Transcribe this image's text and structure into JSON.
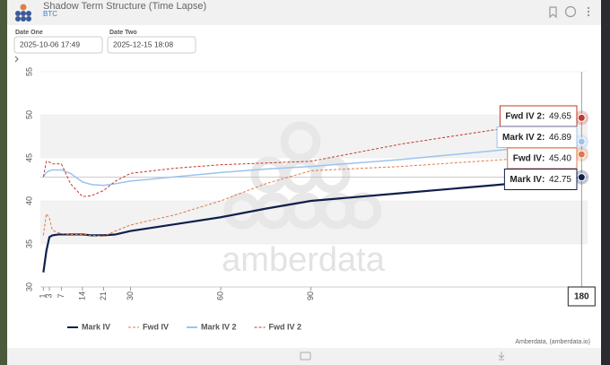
{
  "header": {
    "title": "Shadow Term Structure (Time Lapse)",
    "subtitle": "BTC"
  },
  "controls": {
    "date_one_label": "Date One",
    "date_one": "2025-10-06 17:49",
    "date_two_label": "Date Two",
    "date_two": "2025-12-15 18:08"
  },
  "chart_data": {
    "type": "line",
    "x": [
      1,
      2,
      3,
      4,
      6,
      7,
      10,
      14,
      17,
      21,
      25,
      30,
      45,
      60,
      75,
      90,
      120,
      150,
      180
    ],
    "series": [
      {
        "name": "Mark IV",
        "color": "#0f1f4b",
        "style": "solid",
        "values": [
          31.7,
          34.2,
          35.8,
          36.0,
          36.1,
          36.1,
          36.1,
          36.1,
          36.0,
          36.0,
          36.1,
          36.5,
          37.3,
          38.1,
          39.1,
          40.0,
          40.9,
          41.8,
          42.75
        ]
      },
      {
        "name": "Fwd IV",
        "color": "#e0784a",
        "style": "dashed",
        "values": [
          36.0,
          38.5,
          38.0,
          36.6,
          36.3,
          36.2,
          36.1,
          36.1,
          36.0,
          35.9,
          36.5,
          37.2,
          38.4,
          40.0,
          42.0,
          43.5,
          44.0,
          44.7,
          45.4
        ]
      },
      {
        "name": "Mark IV 2",
        "color": "#9cc3ef",
        "style": "solid",
        "values": [
          42.8,
          43.3,
          43.5,
          43.6,
          43.6,
          43.6,
          43.2,
          42.2,
          41.9,
          41.8,
          42.0,
          42.3,
          42.8,
          43.3,
          43.7,
          44.0,
          44.8,
          45.8,
          46.89
        ]
      },
      {
        "name": "Fwd IV 2",
        "color": "#c0392b",
        "style": "dashed",
        "values": [
          42.8,
          44.6,
          44.5,
          44.3,
          44.3,
          44.3,
          42.0,
          40.5,
          40.6,
          41.2,
          42.3,
          43.2,
          43.8,
          44.2,
          44.4,
          44.6,
          46.6,
          48.2,
          49.65
        ]
      }
    ],
    "xlim": [
      0,
      182
    ],
    "xticks": [
      1,
      3,
      7,
      14,
      21,
      30,
      60,
      90
    ],
    "ylim": [
      30,
      55
    ],
    "yticks": [
      30,
      35,
      40,
      45,
      50,
      55
    ],
    "bands": true,
    "tooltip": {
      "x": 180,
      "entries": [
        {
          "name": "Fwd IV 2",
          "value": 49.65,
          "value_label": "49.65",
          "color": "#c0392b"
        },
        {
          "name": "Mark IV 2",
          "value": 46.89,
          "value_label": "46.89",
          "color": "#9cc3ef"
        },
        {
          "name": "Fwd IV",
          "value": 45.4,
          "value_label": "45.40",
          "color": "#e0784a"
        },
        {
          "name": "Mark IV",
          "value": 42.75,
          "value_label": "42.75",
          "color": "#0f1f4b"
        }
      ]
    },
    "watermark": "amberdata",
    "credit": "Amberdata, (amberdata.io)"
  }
}
